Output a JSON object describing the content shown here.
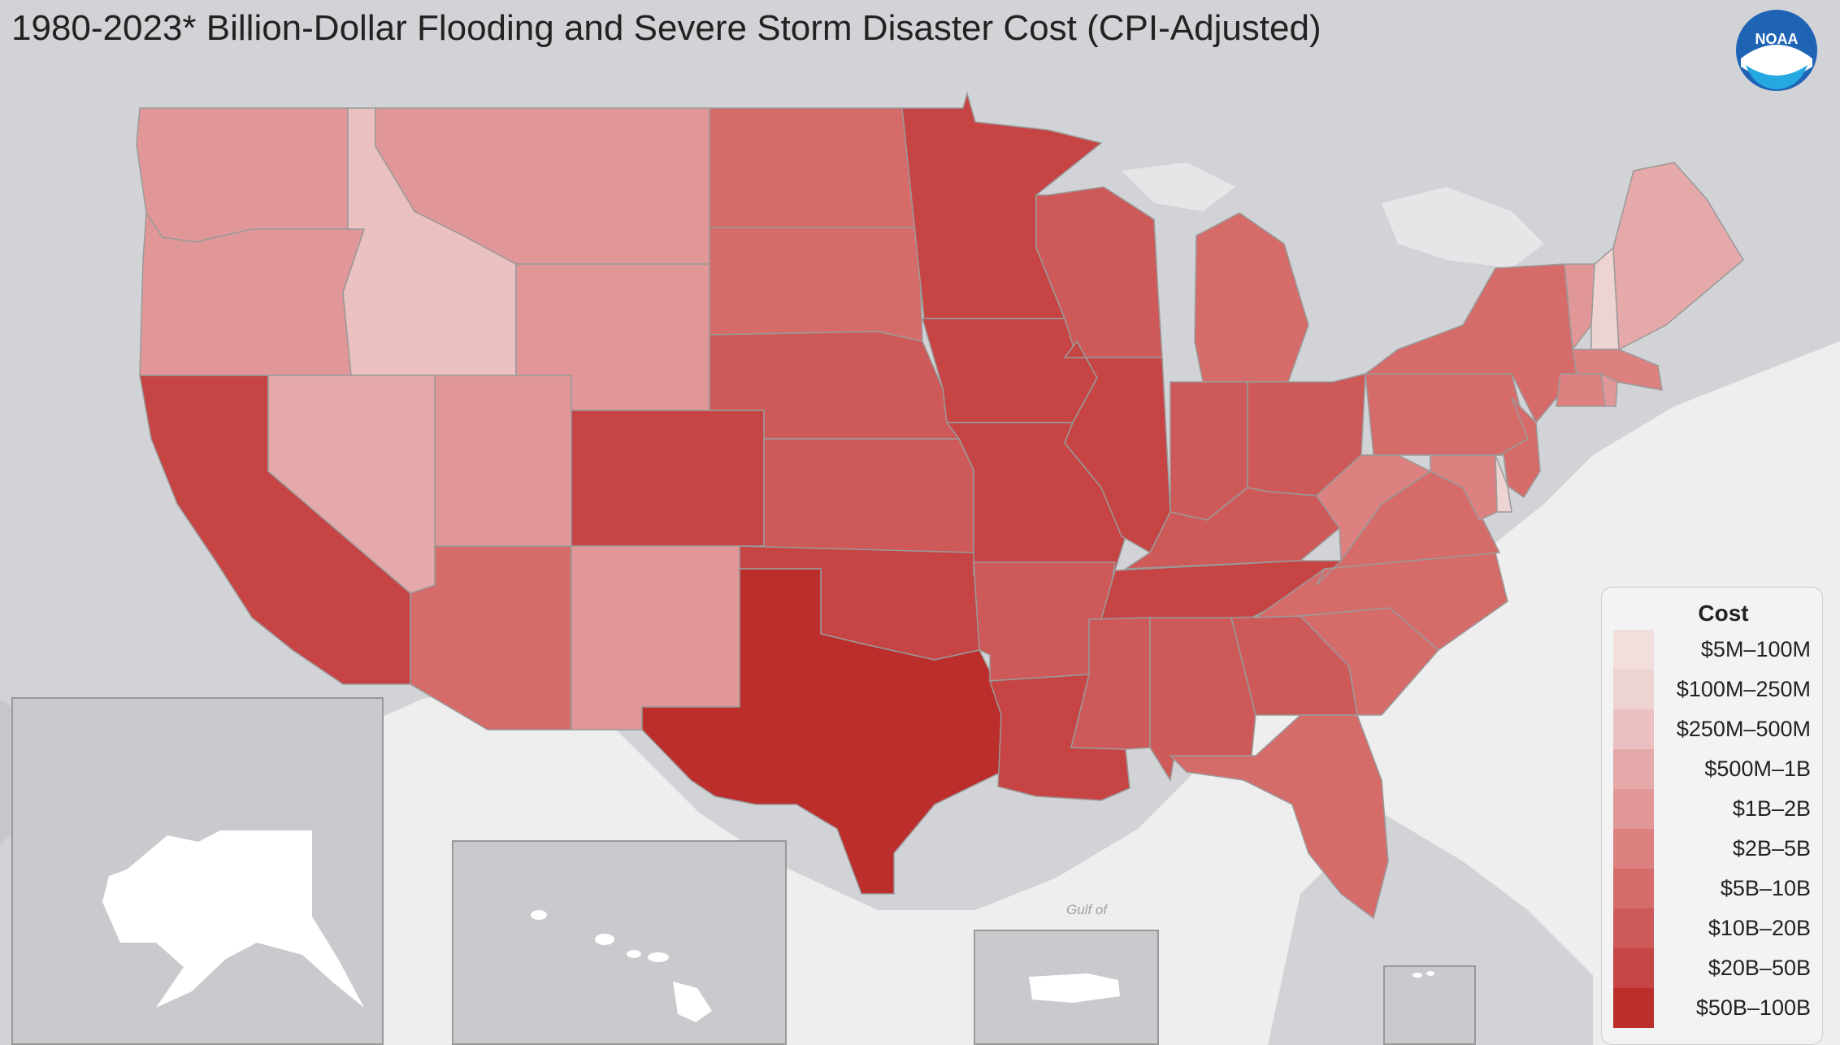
{
  "title": "1980-2023* Billion-Dollar Flooding and Severe Storm Disaster Cost (CPI-Adjusted)",
  "logo": {
    "text": "NOAA",
    "icon": "noaa-logo-icon"
  },
  "map_labels": {
    "gulf": "Gulf of"
  },
  "colors": {
    "water": "#eeeeee",
    "land": "#d2d3d6",
    "state_border": "#9a9a9a",
    "inset_land": "#ffffff"
  },
  "legend": {
    "title": "Cost",
    "bins": [
      {
        "label": "$5M–100M",
        "color": "#f3dede"
      },
      {
        "label": "$100M–250M",
        "color": "#eed3d3"
      },
      {
        "label": "$250M–500M",
        "color": "#eac0c0"
      },
      {
        "label": "$500M–1B",
        "color": "#e5a9a9"
      },
      {
        "label": "$1B–2B",
        "color": "#e19797"
      },
      {
        "label": "$2B–5B",
        "color": "#dc8080"
      },
      {
        "label": "$5B–10B",
        "color": "#d56c6a"
      },
      {
        "label": "$10B–20B",
        "color": "#cd5a58"
      },
      {
        "label": "$20B–50B",
        "color": "#c64544"
      },
      {
        "label": "$50B–100B",
        "color": "#bb2e2c"
      }
    ]
  },
  "states": [
    {
      "name": "WA",
      "bin": 4
    },
    {
      "name": "OR",
      "bin": 4
    },
    {
      "name": "CA",
      "bin": 8
    },
    {
      "name": "ID",
      "bin": 2
    },
    {
      "name": "NV",
      "bin": 3
    },
    {
      "name": "MT",
      "bin": 4
    },
    {
      "name": "WY",
      "bin": 4
    },
    {
      "name": "UT",
      "bin": 4
    },
    {
      "name": "AZ",
      "bin": 6
    },
    {
      "name": "CO",
      "bin": 8
    },
    {
      "name": "NM",
      "bin": 4
    },
    {
      "name": "ND",
      "bin": 6
    },
    {
      "name": "SD",
      "bin": 6
    },
    {
      "name": "NE",
      "bin": 7
    },
    {
      "name": "KS",
      "bin": 7
    },
    {
      "name": "OK",
      "bin": 8
    },
    {
      "name": "TX",
      "bin": 9
    },
    {
      "name": "MN",
      "bin": 8
    },
    {
      "name": "IA",
      "bin": 8
    },
    {
      "name": "MO",
      "bin": 8
    },
    {
      "name": "AR",
      "bin": 7
    },
    {
      "name": "LA",
      "bin": 8
    },
    {
      "name": "WI",
      "bin": 7
    },
    {
      "name": "IL",
      "bin": 8
    },
    {
      "name": "MI",
      "bin": 6
    },
    {
      "name": "IN",
      "bin": 7
    },
    {
      "name": "OH",
      "bin": 7
    },
    {
      "name": "KY",
      "bin": 7
    },
    {
      "name": "TN",
      "bin": 8
    },
    {
      "name": "MS",
      "bin": 7
    },
    {
      "name": "AL",
      "bin": 7
    },
    {
      "name": "GA",
      "bin": 7
    },
    {
      "name": "FL",
      "bin": 6
    },
    {
      "name": "SC",
      "bin": 6
    },
    {
      "name": "NC",
      "bin": 6
    },
    {
      "name": "VA",
      "bin": 6
    },
    {
      "name": "WV",
      "bin": 5
    },
    {
      "name": "PA",
      "bin": 6
    },
    {
      "name": "NY",
      "bin": 6
    },
    {
      "name": "VT",
      "bin": 4
    },
    {
      "name": "NH",
      "bin": 1
    },
    {
      "name": "ME",
      "bin": 3
    },
    {
      "name": "MA",
      "bin": 5
    },
    {
      "name": "CT",
      "bin": 5
    },
    {
      "name": "RI",
      "bin": 4
    },
    {
      "name": "NJ",
      "bin": 6
    },
    {
      "name": "DE",
      "bin": 1
    },
    {
      "name": "MD",
      "bin": 5
    }
  ]
}
